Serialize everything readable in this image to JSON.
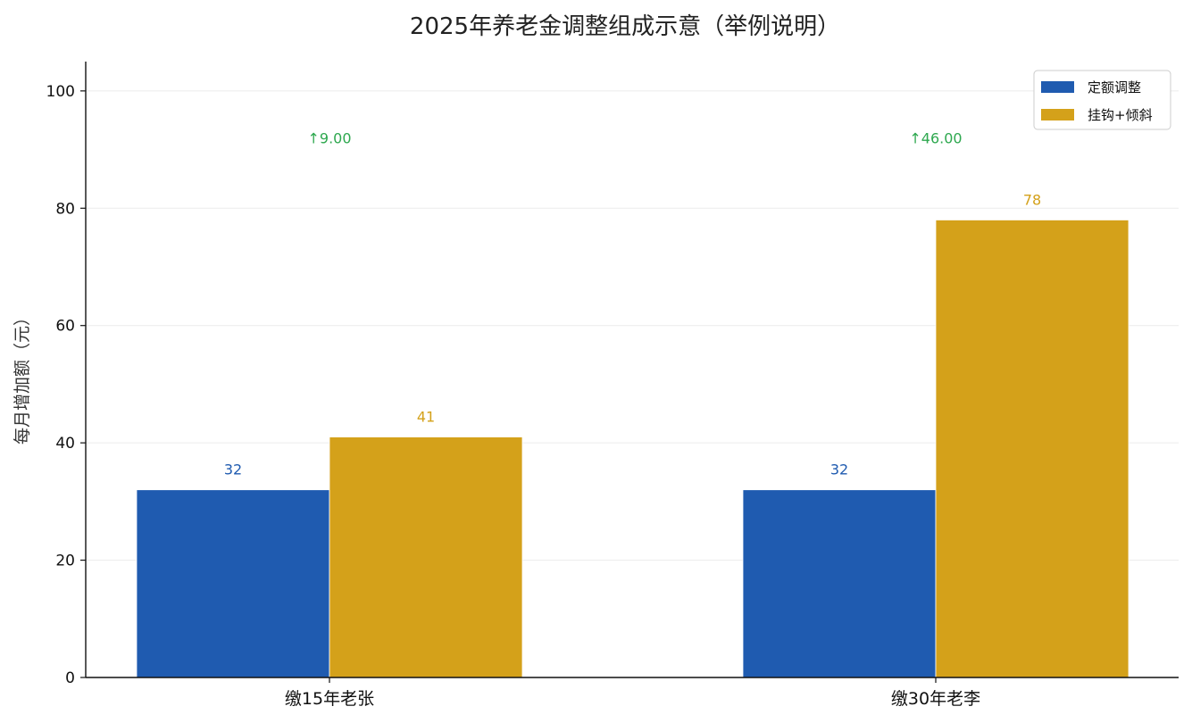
{
  "chart_data": {
    "type": "bar",
    "title": "2025年养老金调整组成示意（举例说明）",
    "ylabel": "每月增加额（元）",
    "xlabel": "",
    "ylim": [
      0,
      105
    ],
    "yticks": [
      0,
      20,
      40,
      60,
      80,
      100
    ],
    "grid": true,
    "legend_position": "top-right",
    "categories": [
      "缴15年老张",
      "缴30年老李"
    ],
    "series": [
      {
        "name": "定额调整",
        "values": [
          32,
          32
        ],
        "color": "#1f5bb0",
        "label_color": "#1f5bb0"
      },
      {
        "name": "挂钩+倾斜",
        "values": [
          41,
          78
        ],
        "color": "#d4a11a",
        "label_color": "#d4a11a"
      }
    ],
    "annotations": [
      "↑9.00",
      "↑46.00"
    ],
    "annotation_value": 92,
    "annotation_color": "#2ea84f"
  }
}
